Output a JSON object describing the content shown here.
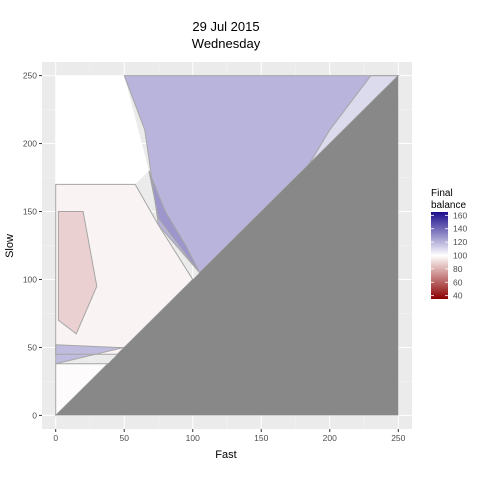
{
  "chart_data": {
    "type": "heatmap",
    "title": "29 Jul 2015",
    "subtitle": "Wednesday",
    "xlabel": "Fast",
    "ylabel": "Slow",
    "xlim": [
      -10,
      260
    ],
    "ylim": [
      -10,
      260
    ],
    "xticks": [
      0,
      50,
      100,
      150,
      200,
      250
    ],
    "yticks": [
      0,
      50,
      100,
      150,
      200,
      250
    ],
    "grid": true,
    "fill_variable": "Final balance",
    "legend_title": [
      "Final",
      "balance"
    ],
    "legend_position": "right",
    "legend_range": [
      35,
      165
    ],
    "legend_ticks": [
      160,
      140,
      120,
      100,
      80,
      60,
      40
    ],
    "masked_region": "Slow <= Fast",
    "masked_color": "#888888",
    "colors": {
      "low": "#8b0000",
      "mid": "#ffffff",
      "high": "#1a0c8c",
      "panel": "#ebebeb",
      "gridline": "#ffffff",
      "contour": "#a6a6a6"
    },
    "regions": [
      {
        "label": "upper purple band",
        "polygon": [
          [
            50,
            250
          ],
          [
            250,
            250
          ],
          [
            105,
            105
          ],
          [
            75,
            140
          ],
          [
            65,
            210
          ]
        ],
        "value": 120
      },
      {
        "label": "strong ridge",
        "polygon": [
          [
            68,
            180
          ],
          [
            75,
            145
          ],
          [
            105,
            105
          ],
          [
            95,
            125
          ],
          [
            80,
            150
          ]
        ],
        "value": 128
      },
      {
        "label": "right lighter wedge",
        "polygon": [
          [
            185,
            185
          ],
          [
            250,
            250
          ],
          [
            230,
            250
          ],
          [
            200,
            210
          ]
        ],
        "value": 110
      },
      {
        "label": "middle pale region",
        "polygon": [
          [
            0,
            170
          ],
          [
            58,
            170
          ],
          [
            75,
            140
          ],
          [
            100,
            100
          ],
          [
            45,
            45
          ],
          [
            0,
            45
          ]
        ],
        "value": 97
      },
      {
        "label": "left red streak",
        "polygon": [
          [
            2,
            150
          ],
          [
            20,
            150
          ],
          [
            30,
            95
          ],
          [
            15,
            60
          ],
          [
            2,
            70
          ]
        ],
        "value": 88
      },
      {
        "label": "lower purple strip",
        "polygon": [
          [
            0,
            52
          ],
          [
            45,
            50
          ],
          [
            50,
            50
          ],
          [
            0,
            38
          ]
        ],
        "value": 118
      },
      {
        "label": "bottom pale region",
        "polygon": [
          [
            0,
            38
          ],
          [
            38,
            38
          ],
          [
            0,
            0
          ]
        ],
        "value": 99
      },
      {
        "label": "no data",
        "polygon": [
          [
            0,
            250
          ],
          [
            50,
            250
          ],
          [
            68,
            180
          ],
          [
            58,
            170
          ],
          [
            0,
            170
          ]
        ],
        "value": null
      }
    ]
  }
}
